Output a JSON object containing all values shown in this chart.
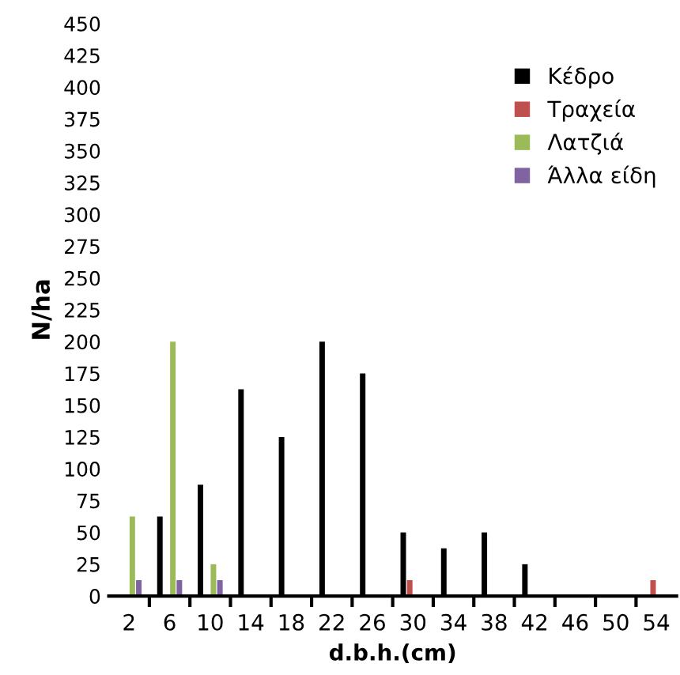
{
  "chart_data": {
    "type": "bar",
    "xlabel": "d.b.h.(cm)",
    "ylabel": "N/ha",
    "categories": [
      "2",
      "6",
      "10",
      "14",
      "18",
      "22",
      "26",
      "30",
      "34",
      "38",
      "42",
      "46",
      "50",
      "54"
    ],
    "series": [
      {
        "name": "Κέδρο",
        "color": "#000000",
        "values": [
          0,
          62.5,
          87.5,
          162.5,
          125,
          200,
          175,
          50,
          37.5,
          50,
          25,
          0,
          0,
          0
        ]
      },
      {
        "name": "Τραχεία",
        "color": "#c0504d",
        "values": [
          0,
          0,
          0,
          0,
          0,
          0,
          0,
          12.5,
          0,
          0,
          0,
          0,
          0,
          12.5
        ]
      },
      {
        "name": "Λατζιά",
        "color": "#9bbb59",
        "values": [
          62.5,
          200,
          25,
          0,
          0,
          0,
          0,
          0,
          0,
          0,
          0,
          0,
          0,
          0
        ]
      },
      {
        "name": "Άλλα είδη",
        "color": "#8064a2",
        "values": [
          12.5,
          12.5,
          12.5,
          0,
          0,
          0,
          0,
          0,
          0,
          0,
          0,
          0,
          0,
          0
        ]
      }
    ],
    "ylim": [
      0,
      450
    ],
    "yticks": [
      0,
      25,
      50,
      75,
      100,
      125,
      150,
      175,
      200,
      225,
      250,
      275,
      300,
      325,
      350,
      375,
      400,
      425,
      450
    ],
    "grid": false,
    "legend": "top right"
  }
}
